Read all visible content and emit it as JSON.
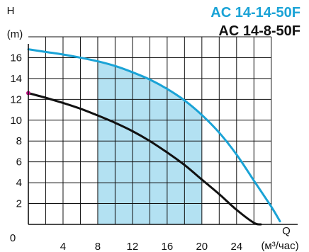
{
  "chart_data": {
    "type": "line",
    "titles": [
      {
        "text": "AC 14-14-50F",
        "color": "#1aa3d6"
      },
      {
        "text": "AC 14-8-50F",
        "color": "#111111"
      }
    ],
    "xlabel": "Q",
    "xunit": "(м³/час)",
    "ylabel": "H",
    "yunit": "(m)",
    "xlim": [
      0,
      29
    ],
    "ylim": [
      0,
      18
    ],
    "x_ticks": [
      0,
      4,
      8,
      12,
      16,
      20,
      24
    ],
    "y_ticks": [
      2,
      4,
      6,
      8,
      10,
      12,
      14,
      16
    ],
    "origin_label": "0",
    "grid": true,
    "grid_x_step": 2,
    "grid_y_step": 2,
    "shaded_region": {
      "x_from": 8,
      "x_to": 20,
      "color": "#b3e1f2",
      "under_series": "AC 14-14-50F"
    },
    "series": [
      {
        "name": "AC 14-14-50F",
        "color": "#1aa3d6",
        "x": [
          0,
          2,
          4,
          6,
          8,
          10,
          12,
          14,
          16,
          18,
          20,
          22,
          24,
          26,
          28,
          29
        ],
        "y": [
          16.8,
          16.55,
          16.3,
          16.0,
          15.65,
          15.2,
          14.6,
          13.9,
          13.0,
          11.9,
          10.5,
          8.8,
          6.7,
          4.2,
          1.7,
          0.3
        ]
      },
      {
        "name": "AC 14-8-50F",
        "color": "#111111",
        "x": [
          0,
          2,
          4,
          6,
          8,
          10,
          12,
          14,
          16,
          18,
          20,
          22,
          24,
          26,
          26.8
        ],
        "y": [
          12.6,
          12.15,
          11.65,
          11.1,
          10.45,
          9.75,
          8.95,
          8.0,
          6.9,
          5.7,
          4.3,
          2.9,
          1.4,
          0.15,
          0.0
        ]
      }
    ],
    "marker": {
      "x": 0,
      "y": 12.6,
      "color": "#c8148a"
    }
  }
}
